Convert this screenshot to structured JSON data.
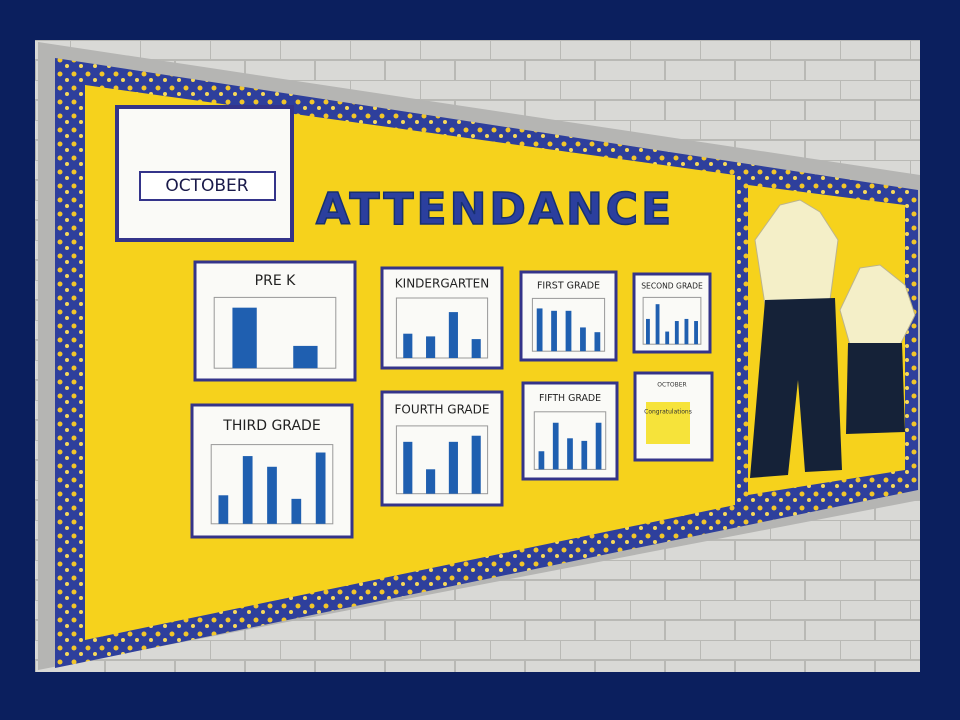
{
  "month_card": {
    "label": "OCTOBER"
  },
  "title": "ATTENDANCE",
  "panels": [
    {
      "label": "PRE K",
      "bars": [
        95,
        35
      ]
    },
    {
      "label": "KINDERGARTEN",
      "bars": [
        45,
        40,
        85,
        35
      ]
    },
    {
      "label": "FIRST GRADE",
      "bars": [
        90,
        85,
        85,
        50,
        40
      ]
    },
    {
      "label": "SECOND GRADE",
      "bars": [
        60,
        95,
        30,
        55,
        60,
        55
      ]
    },
    {
      "label": "THIRD GRADE",
      "bars": [
        40,
        95,
        80,
        35,
        100
      ]
    },
    {
      "label": "FOURTH GRADE",
      "bars": [
        85,
        40,
        85,
        95
      ]
    },
    {
      "label": "FIFTH GRADE",
      "bars": [
        35,
        90,
        60,
        55,
        90
      ]
    }
  ],
  "certificate": {
    "heading": "OCTOBER",
    "text": "Congratulations"
  }
}
